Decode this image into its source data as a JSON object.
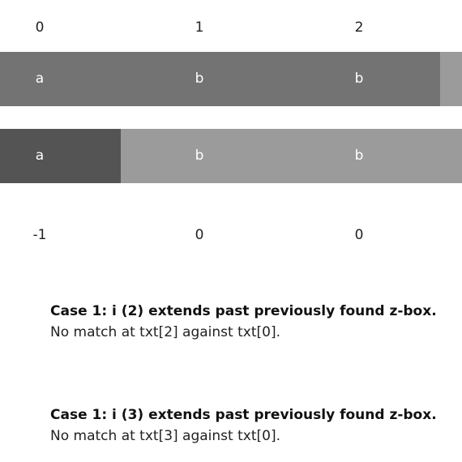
{
  "indices": [
    "0",
    "1",
    "2"
  ],
  "row1": {
    "labels": [
      "a",
      "b",
      "b"
    ],
    "colors": {
      "main": "#737373",
      "tail": "#9b9b9b"
    }
  },
  "row2": {
    "labels": [
      "a",
      "b",
      "b"
    ],
    "colors": {
      "highlight": "#545454",
      "rest": "#9b9b9b"
    }
  },
  "z_values": [
    "-1",
    "0",
    "0"
  ],
  "cases": [
    {
      "title": "Case 1: i (2) extends past previously found z-box.",
      "description": "No match at txt[2] against txt[0]."
    },
    {
      "title": "Case 1: i (3) extends past previously found z-box.",
      "description": "No match at txt[3] against txt[0]."
    }
  ]
}
